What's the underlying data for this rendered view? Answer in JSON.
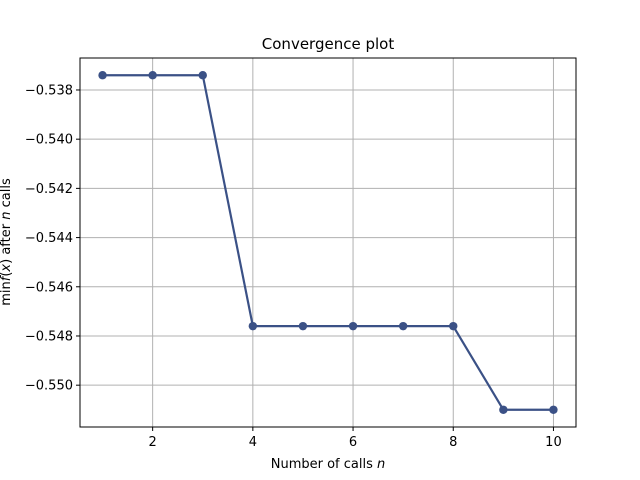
{
  "chart_data": {
    "type": "line",
    "title": "Convergence plot",
    "xlabel_prefix": "Number of calls ",
    "xlabel_var": "n",
    "ylabel_part1": "min",
    "ylabel_part2": "f",
    "ylabel_part3": "(",
    "ylabel_part4": "x",
    "ylabel_part5": ") after ",
    "ylabel_part6": "n",
    "ylabel_part7": " calls",
    "x": [
      1,
      2,
      3,
      4,
      5,
      6,
      7,
      8,
      9,
      10
    ],
    "y": [
      -0.5374,
      -0.5374,
      -0.5374,
      -0.5476,
      -0.5476,
      -0.5476,
      -0.5476,
      -0.5476,
      -0.551,
      -0.551
    ],
    "xlim": [
      0.55,
      10.45
    ],
    "ylim": [
      -0.5517,
      -0.5367
    ],
    "x_ticks": [
      2,
      4,
      6,
      8,
      10
    ],
    "x_tick_labels": [
      "2",
      "4",
      "6",
      "8",
      "10"
    ],
    "y_ticks": [
      -0.538,
      -0.54,
      -0.542,
      -0.544,
      -0.546,
      -0.548,
      -0.55
    ],
    "y_tick_labels": [
      "−0.538",
      "−0.540",
      "−0.542",
      "−0.544",
      "−0.546",
      "−0.548",
      "−0.550"
    ],
    "grid": true,
    "line_color": "#3b5186",
    "grid_color": "#b0b0b0"
  }
}
